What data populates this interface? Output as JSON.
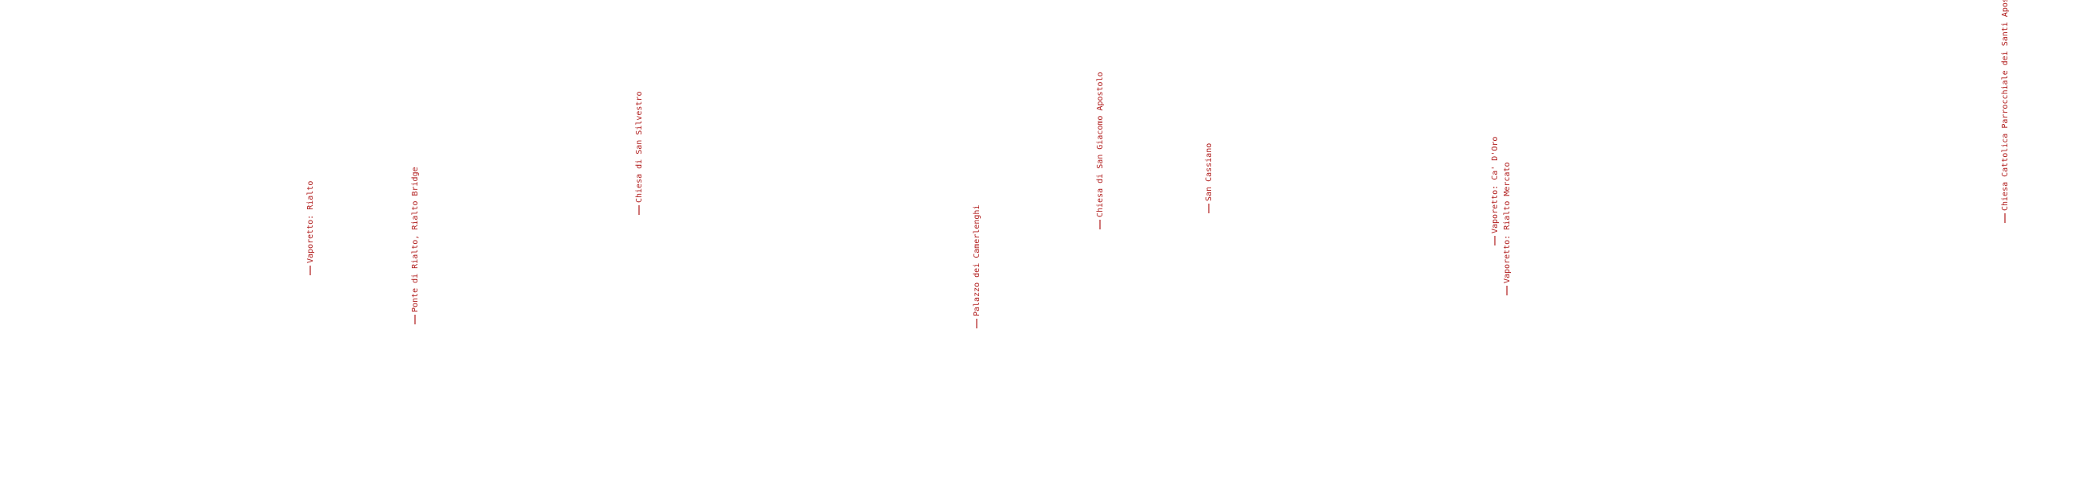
{
  "labels": [
    "Vaporetto: Rialto",
    "Ponte di Rialto, Rialto Bridge",
    "Chiesa di San Silvestro",
    "Palazzo dei Camerlenghi",
    "Chiesa di San Giacomo Apostolo",
    "San Cassiano",
    "Vaporetto: Ca' D'Oro",
    "Vaporetto: Rialto Mercato",
    "Chiesa Cattolica Parrocchiale dei Santi Apostoli"
  ]
}
